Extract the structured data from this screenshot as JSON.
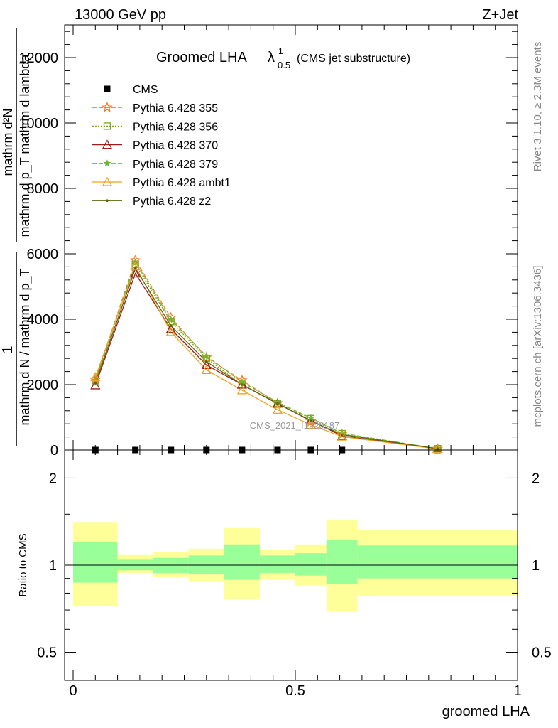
{
  "header": {
    "left": "13000 GeV pp",
    "right": "Z+Jet"
  },
  "side_labels": {
    "rivet": "Rivet 3.1.10, ≥ 2.3M events",
    "mcplots": "mcplots.cern.ch [arXiv:1306.3436]"
  },
  "watermark": "CMS_2021_I1920187",
  "chart_data": [
    {
      "type": "line",
      "title": "Groomed LHA",
      "title_symbol": "λ",
      "title_sup": "1",
      "title_sub": "0.5",
      "subtitle": "(CMS jet substructure)",
      "ylabel_num": "mathrm d²N",
      "ylabel_den": "mathrm d p_T mathrm d lambda",
      "ylabel_pre_num": "1",
      "ylabel_pre_den": "mathrm d N / mathrm d p_T",
      "xlim": [
        0,
        1
      ],
      "ylim": [
        0,
        13000
      ],
      "yticks": [
        0,
        2000,
        4000,
        6000,
        8000,
        10000,
        12000
      ],
      "ytick_labels": [
        "0",
        "2000",
        "4000",
        "6000",
        "8000",
        "10000",
        "12000"
      ],
      "legend_position": "top-left",
      "x": [
        0.05,
        0.14,
        0.22,
        0.3,
        0.38,
        0.46,
        0.535,
        0.605,
        0.82
      ],
      "series": [
        {
          "name": "CMS",
          "color": "#000000",
          "marker": "square",
          "dash": "none",
          "values": [
            0,
            0,
            0,
            0,
            0,
            0,
            0,
            0,
            0
          ]
        },
        {
          "name": "Pythia 6.428 355",
          "color": "#ff7f27",
          "marker": "star",
          "dash": "6,3",
          "values": [
            2150,
            5800,
            4050,
            2830,
            2130,
            1430,
            880,
            480,
            40
          ]
        },
        {
          "name": "Pythia 6.428 356",
          "color": "#7ca61c",
          "marker": "open-square",
          "dash": "2,2",
          "values": [
            2120,
            5680,
            3930,
            2800,
            2000,
            1420,
            960,
            500,
            40
          ]
        },
        {
          "name": "Pythia 6.428 370",
          "color": "#9e1c1c",
          "marker": "open-triangle",
          "dash": "none",
          "values": [
            1980,
            5400,
            3700,
            2600,
            2000,
            1420,
            900,
            430,
            40
          ]
        },
        {
          "name": "Pythia 6.428 379",
          "color": "#6fb82c",
          "marker": "star-small",
          "dash": "6,3",
          "values": [
            2130,
            5750,
            3990,
            2870,
            2080,
            1460,
            980,
            510,
            40
          ]
        },
        {
          "name": "Pythia 6.428 ambt1",
          "color": "#f0a21c",
          "marker": "open-triangle",
          "dash": "none",
          "values": [
            2230,
            5620,
            3610,
            2450,
            1830,
            1230,
            770,
            410,
            30
          ]
        },
        {
          "name": "Pythia 6.428 z2",
          "color": "#5e6410",
          "marker": "dot",
          "dash": "none",
          "values": [
            2050,
            5550,
            3800,
            2700,
            2000,
            1420,
            890,
            470,
            40
          ]
        }
      ]
    },
    {
      "type": "area",
      "ylabel": "Ratio to CMS",
      "xlabel": "groomed LHA",
      "xlim": [
        0,
        1
      ],
      "ylim": [
        0.4,
        2.5
      ],
      "log_scale_y": true,
      "yticks": [
        0.5,
        1,
        2
      ],
      "ytick_labels": [
        "0.5",
        "1",
        "2"
      ],
      "xticks": [
        0,
        0.5,
        1
      ],
      "xtick_labels": [
        "0",
        "0.5",
        "1"
      ],
      "bins": [
        {
          "x0": 0.0,
          "x1": 0.1,
          "inner": [
            0.87,
            1.2
          ],
          "outer": [
            0.72,
            1.41
          ]
        },
        {
          "x0": 0.1,
          "x1": 0.18,
          "inner": [
            0.96,
            1.05
          ],
          "outer": [
            0.94,
            1.09
          ]
        },
        {
          "x0": 0.18,
          "x1": 0.26,
          "inner": [
            0.94,
            1.06
          ],
          "outer": [
            0.91,
            1.11
          ]
        },
        {
          "x0": 0.26,
          "x1": 0.34,
          "inner": [
            0.93,
            1.08
          ],
          "outer": [
            0.88,
            1.14
          ]
        },
        {
          "x0": 0.34,
          "x1": 0.42,
          "inner": [
            0.89,
            1.18
          ],
          "outer": [
            0.76,
            1.35
          ]
        },
        {
          "x0": 0.42,
          "x1": 0.5,
          "inner": [
            0.94,
            1.08
          ],
          "outer": [
            0.89,
            1.13
          ]
        },
        {
          "x0": 0.5,
          "x1": 0.57,
          "inner": [
            0.92,
            1.1
          ],
          "outer": [
            0.85,
            1.18
          ]
        },
        {
          "x0": 0.57,
          "x1": 0.64,
          "inner": [
            0.86,
            1.22
          ],
          "outer": [
            0.69,
            1.43
          ]
        },
        {
          "x0": 0.64,
          "x1": 1.0,
          "inner": [
            0.9,
            1.17
          ],
          "outer": [
            0.78,
            1.32
          ]
        }
      ],
      "reference_line": 1
    }
  ]
}
